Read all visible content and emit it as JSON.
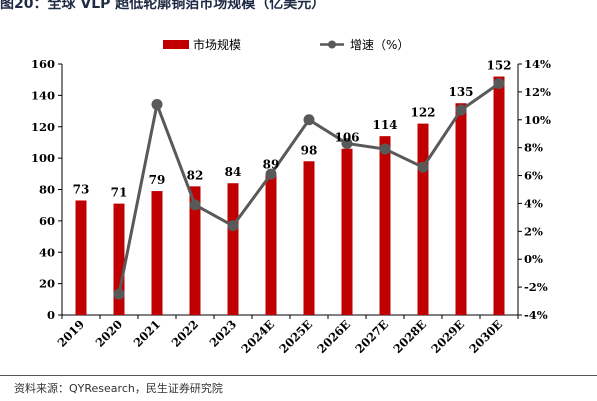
{
  "title": "图20：全球 VLP 超低轮廓铜箔市场规模（亿美元）",
  "source": "资料来源：QYResearch，民生证券研究院",
  "chart_data": {
    "type": "bar",
    "categories": [
      "2019",
      "2020",
      "2021",
      "2022",
      "2023",
      "2024E",
      "2025E",
      "2026E",
      "2027E",
      "2028E",
      "2029E",
      "2030E"
    ],
    "series": [
      {
        "name": "市场规模",
        "type": "bar",
        "axis": "left",
        "color": "#c00000",
        "values": [
          73,
          71,
          79,
          82,
          84,
          89,
          98,
          106,
          114,
          122,
          135,
          152
        ]
      },
      {
        "name": "增速（%）",
        "type": "line",
        "axis": "right",
        "color": "#595959",
        "values": [
          null,
          -2.5,
          11.1,
          3.9,
          2.4,
          6.1,
          10.0,
          8.3,
          7.9,
          6.6,
          10.7,
          12.6
        ]
      }
    ],
    "ylim_left": [
      0,
      160
    ],
    "yticks_left": [
      "0",
      "20",
      "40",
      "60",
      "80",
      "100",
      "120",
      "140",
      "160"
    ],
    "ylim_right": [
      -4,
      14
    ],
    "yticks_right": [
      "-4%",
      "-2%",
      "0%",
      "2%",
      "4%",
      "6%",
      "8%",
      "10%",
      "12%",
      "14%"
    ],
    "data_labels": [
      "73",
      "71",
      "79",
      "82",
      "84",
      "89",
      "98",
      "106",
      "114",
      "122",
      "135",
      "152"
    ],
    "legend_position": "top",
    "grid": false
  }
}
